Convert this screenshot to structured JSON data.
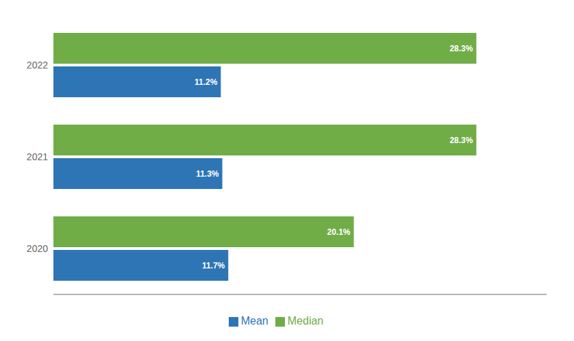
{
  "chart_data": {
    "type": "bar",
    "orientation": "horizontal",
    "categories": [
      "2022",
      "2021",
      "2020"
    ],
    "series": [
      {
        "name": "Median",
        "color": "#70AD47",
        "values": [
          28.3,
          28.3,
          20.1
        ],
        "value_labels": [
          "28.3%",
          "28.3%",
          "20.1%"
        ]
      },
      {
        "name": "Mean",
        "color": "#2E75B6",
        "values": [
          11.2,
          11.3,
          11.7
        ],
        "value_labels": [
          "11.2%",
          "11.3%",
          "11.7%"
        ]
      }
    ],
    "xlim": [
      0,
      33
    ],
    "data_labels": true,
    "tick_labels": "y",
    "legend": "bottom",
    "grid": false
  }
}
